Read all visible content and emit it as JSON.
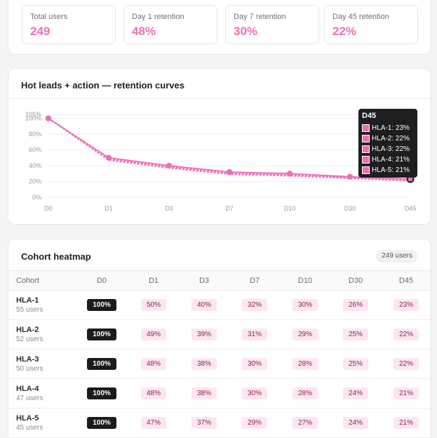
{
  "stats": [
    {
      "label": "Total users",
      "value": "249"
    },
    {
      "label": "Day 1 retention",
      "value": "48%"
    },
    {
      "label": "Day 7 retention",
      "value": "30%"
    },
    {
      "label": "Day 45 retention",
      "value": "22%"
    }
  ],
  "chart": {
    "title": "Hot leads + action — retention curves",
    "tooltip": {
      "title": "D45",
      "rows": [
        "HLA-1: 23%",
        "HLA-2: 22%",
        "HLA-3: 22%",
        "HLA-4: 21%",
        "HLA-5: 21%"
      ]
    }
  },
  "chart_data": {
    "type": "line",
    "title": "Hot leads + action — retention curves",
    "x": [
      "D0",
      "D1",
      "D3",
      "D7",
      "D10",
      "D30",
      "D45"
    ],
    "yticks": [
      "0%",
      "20%",
      "40%",
      "60%",
      "80%",
      "100%",
      "105%"
    ],
    "ylim": [
      0,
      105
    ],
    "series": [
      {
        "name": "HLA-1",
        "values": [
          100,
          50,
          40,
          32,
          30,
          26,
          23
        ]
      },
      {
        "name": "HLA-2",
        "values": [
          100,
          49,
          39,
          31,
          29,
          25,
          22
        ]
      },
      {
        "name": "HLA-3",
        "values": [
          100,
          48,
          38,
          30,
          28,
          25,
          22
        ]
      },
      {
        "name": "HLA-4",
        "values": [
          100,
          48,
          38,
          30,
          28,
          24,
          21
        ]
      },
      {
        "name": "HLA-5",
        "values": [
          100,
          47,
          37,
          29,
          27,
          24,
          21
        ]
      }
    ],
    "color": "#ec6fb5",
    "grid": true
  },
  "heatmap": {
    "title": "Cohort heatmap",
    "badge": "249 users",
    "columns": [
      "Cohort",
      "D0",
      "D1",
      "D3",
      "D7",
      "D10",
      "D30",
      "D45"
    ],
    "rows": [
      {
        "name": "HLA-1",
        "users": "55 users",
        "values": [
          "100%",
          "50%",
          "40%",
          "32%",
          "30%",
          "26%",
          "23%"
        ]
      },
      {
        "name": "HLA-2",
        "users": "52 users",
        "values": [
          "100%",
          "49%",
          "39%",
          "31%",
          "29%",
          "25%",
          "22%"
        ]
      },
      {
        "name": "HLA-3",
        "users": "50 users",
        "values": [
          "100%",
          "48%",
          "38%",
          "30%",
          "28%",
          "25%",
          "22%"
        ]
      },
      {
        "name": "HLA-4",
        "users": "47 users",
        "values": [
          "100%",
          "48%",
          "38%",
          "30%",
          "28%",
          "24%",
          "21%"
        ]
      },
      {
        "name": "HLA-5",
        "users": "45 users",
        "values": [
          "100%",
          "47%",
          "37%",
          "29%",
          "27%",
          "24%",
          "21%"
        ]
      }
    ]
  }
}
